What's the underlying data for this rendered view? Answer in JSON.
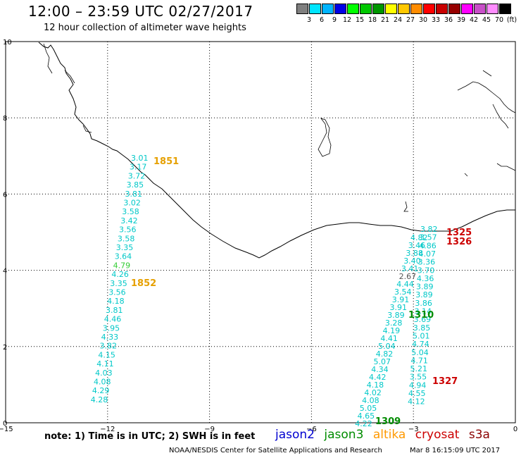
{
  "header": {
    "title": "12:00 – 23:59 UTC 02/27/2017",
    "subtitle": "12 hour collection of altimeter wave heights"
  },
  "scale": {
    "colors": [
      "#7f7f7f",
      "#00e5ff",
      "#00b4ff",
      "#0000e6",
      "#00ff00",
      "#00c800",
      "#009600",
      "#ffff00",
      "#ffc800",
      "#ff8c00",
      "#ff0000",
      "#c80000",
      "#960000",
      "#ff00ff",
      "#c850c8",
      "#ff8cff",
      "#000000"
    ],
    "labels": [
      "3",
      "6",
      "9",
      "12",
      "15",
      "18",
      "21",
      "24",
      "27",
      "30",
      "33",
      "36",
      "39",
      "42",
      "45",
      "70",
      "(ft)"
    ]
  },
  "axes": {
    "x_ticks": [
      "−15",
      "−12",
      "−9",
      "−6",
      "−3",
      "0"
    ],
    "y_ticks": [
      "0",
      "2",
      "4",
      "6",
      "8",
      "10"
    ],
    "x_range": [
      -15,
      0
    ],
    "y_range": [
      0,
      10
    ]
  },
  "tracks": [
    {
      "pass": "1851",
      "pass_color": "#e6a000",
      "values": [
        "3.01",
        "3.17",
        "3.72",
        "3.85",
        "3.81",
        "3.02",
        "3.58",
        "3.42",
        "3.56",
        "3.58",
        "3.35",
        "3.64",
        "4.79",
        "4.26",
        "3.35",
        "3.56",
        "4.18",
        "3.81",
        "4.46",
        "3.95",
        "4.33",
        "3.82",
        "4.15",
        "4.11",
        "4.03",
        "4.08",
        "4.29",
        "4.28"
      ]
    },
    {
      "pass": "1309",
      "pass_color": "#008c00",
      "values": [
        "4.82",
        "3.46",
        "3.88",
        "3.40",
        "3.41",
        "2.67",
        "4.44",
        "3.54",
        "3.91",
        "3.91",
        "3.89",
        "3.28",
        "4.19",
        "4.41",
        "5.04",
        "4.82",
        "5.07",
        "4.34",
        "4.42",
        "4.18",
        "4.02",
        "4.08",
        "5.05",
        "4.65",
        "4.22"
      ]
    },
    {
      "pass": "1326",
      "pass_color": "#cc0000",
      "values": [
        "3.82",
        "3.57",
        "4.86",
        "4.07",
        "3.36",
        "3.70",
        "4.36",
        "3.89",
        "3.89",
        "3.86",
        "3.14",
        "3.69",
        "3.85",
        "5.01",
        "4.74",
        "5.04",
        "4.71",
        "5.21",
        "3.55",
        "4.94",
        "4.55",
        "4.12"
      ]
    }
  ],
  "pass_labels": [
    {
      "text": "1851",
      "color": "#e6a000"
    },
    {
      "text": "1852",
      "color": "#e6a000"
    },
    {
      "text": "1325",
      "color": "#cc0000"
    },
    {
      "text": "1326",
      "color": "#cc0000"
    },
    {
      "text": "1310",
      "color": "#008c00"
    },
    {
      "text": "1327",
      "color": "#cc0000"
    },
    {
      "text": "1309",
      "color": "#008c00"
    }
  ],
  "note": "note: 1) Time is in UTC; 2) SWH is in feet",
  "legend": [
    {
      "name": "jason2",
      "color": "#0000d0"
    },
    {
      "name": "jason3",
      "color": "#008c00"
    },
    {
      "name": "altika",
      "color": "#ff9900"
    },
    {
      "name": "cryosat",
      "color": "#cc0000"
    },
    {
      "name": "s3a",
      "color": "#8b0000"
    }
  ],
  "footer": {
    "credit": "NOAA/NESDIS Center for Satellite Applications and Research",
    "timestamp": "Mar  8 16:15:09 UTC 2017"
  }
}
